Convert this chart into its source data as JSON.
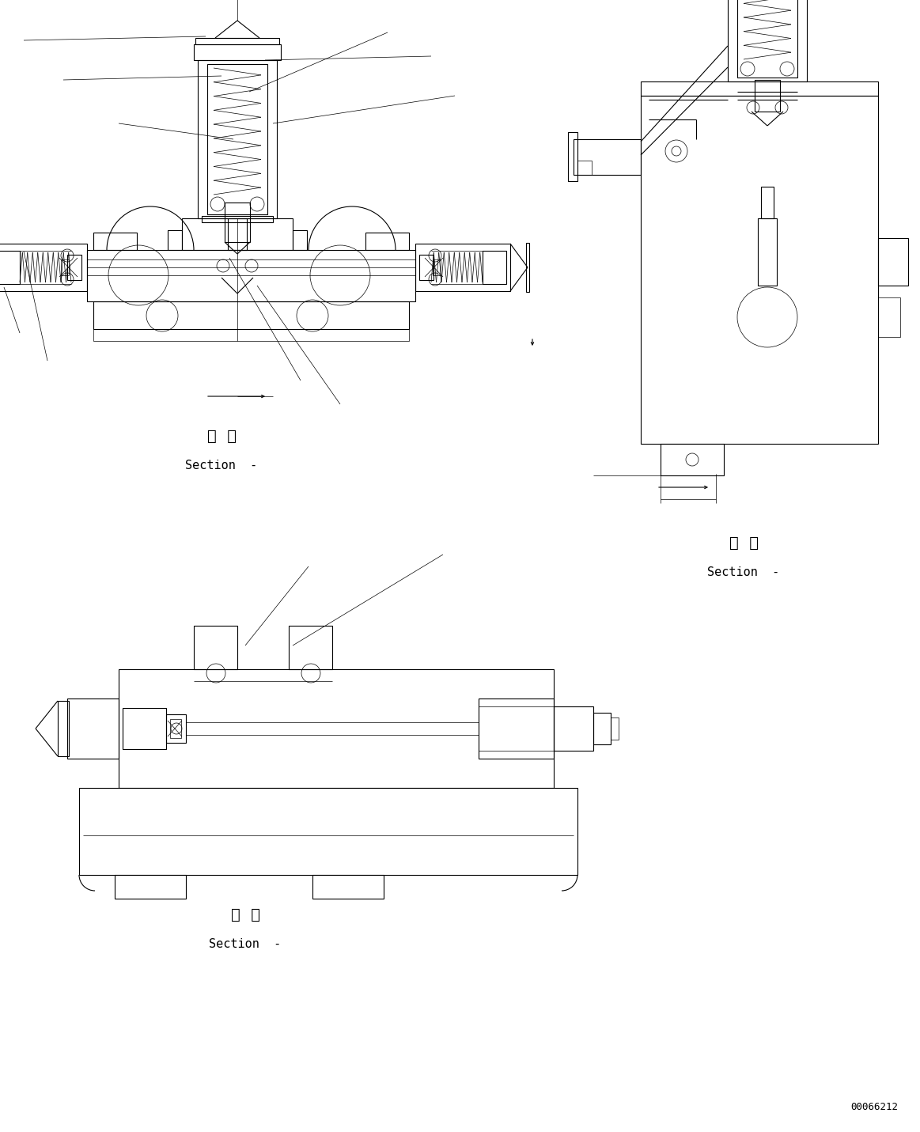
{
  "bg_color": "#ffffff",
  "lc": "#000000",
  "lw": 0.8,
  "tlw": 0.5,
  "part_number": "00066212",
  "sec_zh": "断  面",
  "sec_en": "Section  -"
}
